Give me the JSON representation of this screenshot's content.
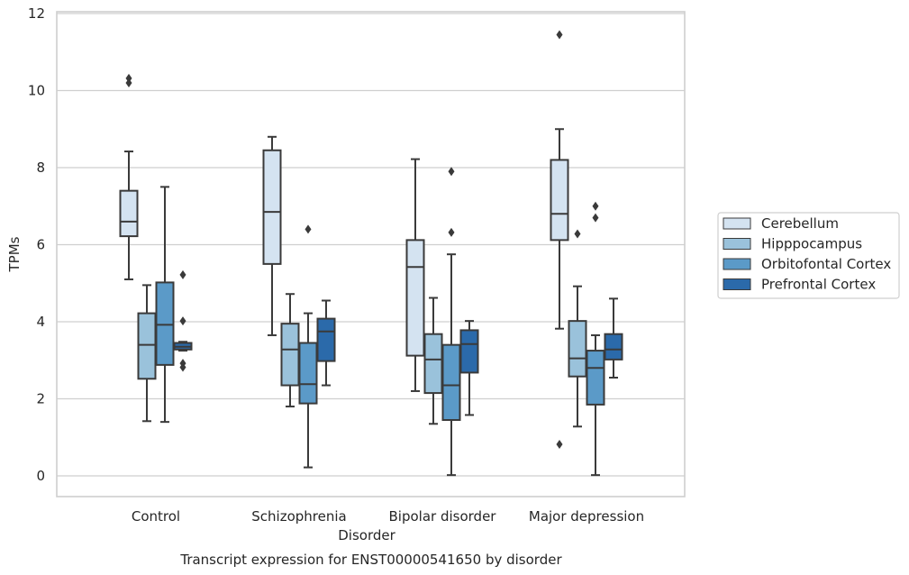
{
  "chart_data": {
    "type": "box",
    "title": "",
    "caption": "Transcript expression for ENST00000541650 by disorder",
    "xlabel": "Disorder",
    "ylabel": "TPMs",
    "ylim": [
      -0.5,
      12.1
    ],
    "yticks": [
      0,
      2,
      4,
      6,
      8,
      10,
      12
    ],
    "grid": true,
    "legend_position": "right",
    "categories": [
      "Control",
      "Schizophrenia",
      "Bipolar disorder",
      "Major depression"
    ],
    "series": [
      {
        "name": "Cerebellum",
        "color": "#d4e3f1",
        "boxes": [
          {
            "whislo": 5.1,
            "q1": 6.22,
            "med": 6.6,
            "q3": 7.4,
            "whishi": 8.42,
            "fliers": [
              10.2,
              10.32
            ]
          },
          {
            "whislo": 3.65,
            "q1": 5.5,
            "med": 6.85,
            "q3": 8.45,
            "whishi": 8.8,
            "fliers": []
          },
          {
            "whislo": 2.2,
            "q1": 3.12,
            "med": 5.42,
            "q3": 6.12,
            "whishi": 8.22,
            "fliers": []
          },
          {
            "whislo": 3.82,
            "q1": 6.12,
            "med": 6.8,
            "q3": 8.2,
            "whishi": 9.0,
            "fliers": [
              11.45,
              0.82
            ]
          }
        ]
      },
      {
        "name": "Hipppocampus",
        "color": "#9ac2db",
        "boxes": [
          {
            "whislo": 1.42,
            "q1": 2.52,
            "med": 3.4,
            "q3": 4.22,
            "whishi": 4.95,
            "fliers": []
          },
          {
            "whislo": 1.8,
            "q1": 2.35,
            "med": 3.28,
            "q3": 3.95,
            "whishi": 4.72,
            "fliers": []
          },
          {
            "whislo": 1.35,
            "q1": 2.15,
            "med": 3.02,
            "q3": 3.68,
            "whishi": 4.62,
            "fliers": []
          },
          {
            "whislo": 1.28,
            "q1": 2.58,
            "med": 3.05,
            "q3": 4.02,
            "whishi": 4.92,
            "fliers": [
              6.28
            ]
          }
        ]
      },
      {
        "name": "Orbitofontal Cortex",
        "color": "#5b9ac8",
        "boxes": [
          {
            "whislo": 1.4,
            "q1": 2.88,
            "med": 3.92,
            "q3": 5.02,
            "whishi": 7.5,
            "fliers": []
          },
          {
            "whislo": 0.22,
            "q1": 1.88,
            "med": 2.38,
            "q3": 3.45,
            "whishi": 4.22,
            "fliers": [
              6.4
            ]
          },
          {
            "whislo": 0.02,
            "q1": 1.45,
            "med": 2.35,
            "q3": 3.4,
            "whishi": 5.75,
            "fliers": [
              7.9,
              6.32
            ]
          },
          {
            "whislo": 0.02,
            "q1": 1.85,
            "med": 2.8,
            "q3": 3.25,
            "whishi": 3.65,
            "fliers": [
              7.0,
              6.7
            ]
          }
        ]
      },
      {
        "name": "Prefrontal Cortex",
        "color": "#2b6aaa",
        "boxes": [
          {
            "whislo": 3.25,
            "q1": 3.28,
            "med": 3.35,
            "q3": 3.45,
            "whishi": 3.48,
            "fliers": [
              5.22,
              4.02,
              2.92,
              2.82
            ]
          },
          {
            "whislo": 2.35,
            "q1": 2.98,
            "med": 3.75,
            "q3": 4.08,
            "whishi": 4.55,
            "fliers": []
          },
          {
            "whislo": 1.58,
            "q1": 2.68,
            "med": 3.42,
            "q3": 3.78,
            "whishi": 4.02,
            "fliers": []
          },
          {
            "whislo": 2.55,
            "q1": 3.02,
            "med": 3.28,
            "q3": 3.68,
            "whishi": 4.6,
            "fliers": []
          }
        ]
      }
    ]
  }
}
